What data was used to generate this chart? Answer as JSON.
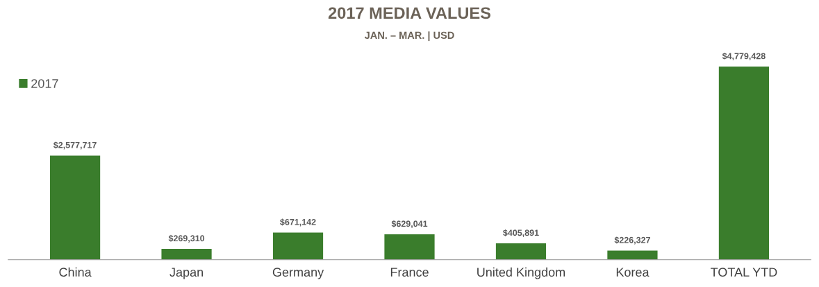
{
  "chart_data": {
    "type": "bar",
    "title": "2017 MEDIA VALUES",
    "subtitle": "JAN. – MAR. | USD",
    "categories": [
      "China",
      "Japan",
      "Germany",
      "France",
      "United Kingdom",
      "Korea",
      "TOTAL YTD"
    ],
    "series": [
      {
        "name": "2017",
        "color": "#3a7d2c",
        "values": [
          2577717,
          269310,
          671142,
          629041,
          405891,
          226327,
          4779428
        ],
        "value_labels": [
          "$2,577,717",
          "$269,310",
          "$671,142",
          "$629,041",
          "$405,891",
          "$226,327",
          "$4,779,428"
        ]
      }
    ],
    "legend": "top left",
    "tick_labels": "x",
    "grid": false
  }
}
